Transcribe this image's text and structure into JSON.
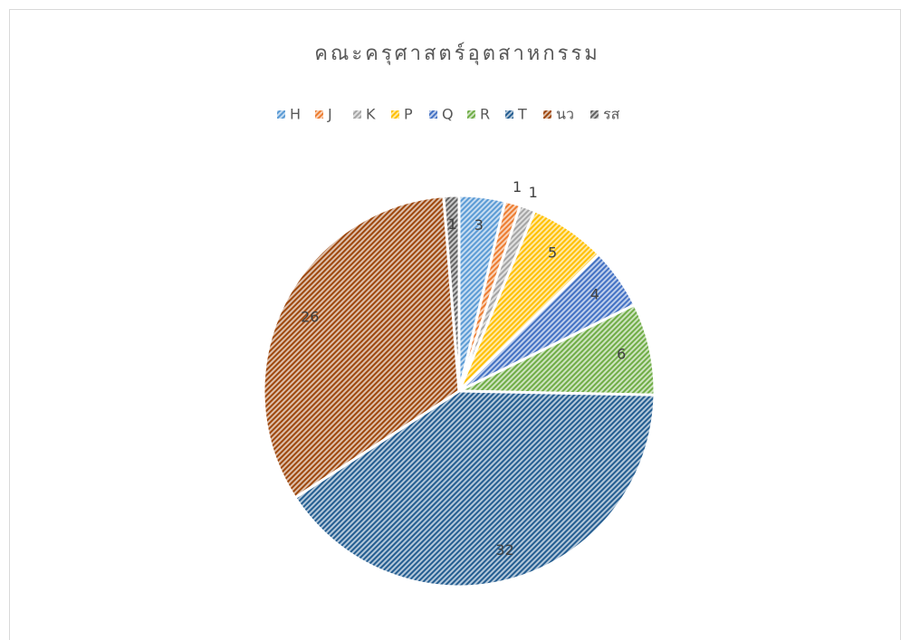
{
  "chart_data": {
    "type": "pie",
    "title": "คณะครุศาสตร์อุตสาหกรรม",
    "categories": [
      "H",
      "J",
      "K",
      "P",
      "Q",
      "R",
      "T",
      "นว",
      "รส"
    ],
    "values": [
      3,
      1,
      1,
      5,
      4,
      6,
      32,
      26,
      1
    ],
    "colors": [
      "#5b9bd5",
      "#ed7d31",
      "#a5a5a5",
      "#ffc000",
      "#4472c4",
      "#70ad47",
      "#255e91",
      "#9e480e",
      "#636363"
    ],
    "legend": "top"
  }
}
